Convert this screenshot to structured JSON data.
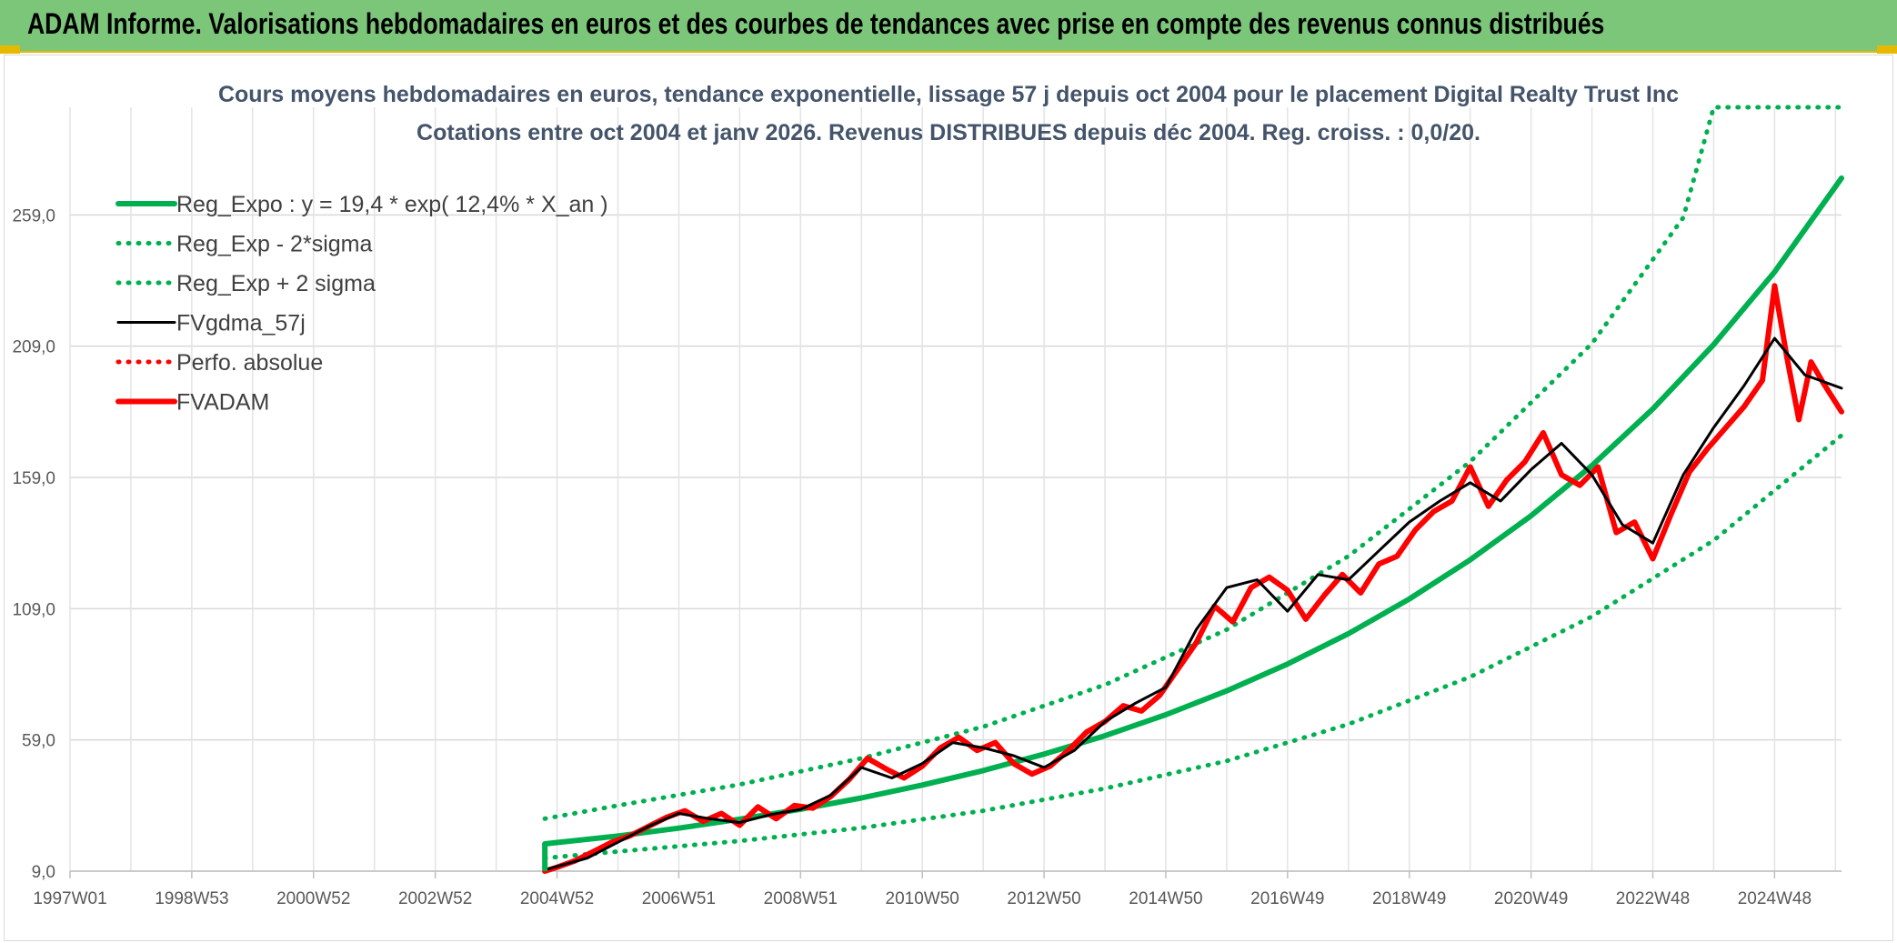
{
  "header": {
    "title": "ADAM Informe. Valorisations hebdomadaires en euros et des courbes de tendances avec prise en compte des revenus connus distribués"
  },
  "colors": {
    "header_bg": "#7cc67a",
    "accent": "#e6b800",
    "trend_green": "#00b050",
    "price_red": "#ff0000",
    "smooth_black": "#000000"
  },
  "chart_data": {
    "type": "line",
    "title": "Cours moyens hebdomadaires en euros, tendance exponentielle, lissage 57 j depuis oct 2004 pour le placement Digital Realty Trust Inc",
    "subtitle": "Cotations entre oct 2004 et janv 2026. Revenus DISTRIBUES depuis déc 2004. Reg. croiss. : 0,0/20.",
    "xlabel": "",
    "ylabel": "",
    "x_tick_labels": [
      "1997W01",
      "1998W53",
      "2000W52",
      "2002W52",
      "2004W52",
      "2006W51",
      "2008W51",
      "2010W50",
      "2012W50",
      "2014W50",
      "2016W49",
      "2018W49",
      "2020W49",
      "2022W48",
      "2024W48"
    ],
    "x_tick_years": [
      1997.0,
      1999.0,
      2001.0,
      2003.0,
      2005.0,
      2007.0,
      2009.0,
      2011.0,
      2013.0,
      2015.0,
      2017.0,
      2019.0,
      2021.0,
      2023.0,
      2025.0
    ],
    "x_range": [
      1997.0,
      2026.1
    ],
    "y_tick_labels": [
      "9,0",
      "59,0",
      "109,0",
      "159,0",
      "209,0",
      "259,0"
    ],
    "y_ticks": [
      9,
      59,
      109,
      159,
      209,
      259
    ],
    "ylim": [
      9,
      300
    ],
    "grid": true,
    "legend_position": "top-left",
    "series": [
      {
        "name": "Reg_Expo : y = 19,4 * exp( 12,4% *  X_an )",
        "style": "solid-thick",
        "color": "#00b050",
        "x": [
          2004.8,
          2005.0,
          2006,
          2007,
          2008,
          2009,
          2010,
          2011,
          2012,
          2013,
          2014,
          2015,
          2016,
          2017,
          2018,
          2019,
          2020,
          2021,
          2022,
          2023,
          2024,
          2025,
          2026.1
        ],
        "y": [
          19.4,
          19.9,
          22.4,
          25.4,
          28.8,
          32.6,
          36.9,
          41.8,
          47.3,
          53.6,
          60.6,
          68.6,
          77.7,
          87.9,
          99.5,
          112.7,
          127.6,
          144.4,
          163.5,
          185.1,
          209.6,
          237.3,
          273.0
        ]
      },
      {
        "name": "Reg_Exp - 2*sigma",
        "style": "dotted",
        "color": "#00b050",
        "x": [
          2004.8,
          2006,
          2008,
          2010,
          2012,
          2014,
          2016,
          2018,
          2020,
          2022,
          2024,
          2026.1
        ],
        "y": [
          14.0,
          16.5,
          20.5,
          25.5,
          32.0,
          40.5,
          51.0,
          65.0,
          83.0,
          106.0,
          135.0,
          175.0
        ]
      },
      {
        "name": "Reg_Exp + 2 sigma",
        "style": "dotted",
        "color": "#00b050",
        "x": [
          2004.8,
          2006,
          2008,
          2010,
          2012,
          2014,
          2016,
          2018,
          2020,
          2022,
          2023.5,
          2024,
          2026.1
        ],
        "y": [
          29.0,
          34.0,
          42.0,
          52.0,
          64.0,
          80.0,
          101.0,
          129.0,
          165.0,
          210.0,
          258.0,
          300.0,
          300.0
        ]
      },
      {
        "name": "FVgdma_57j",
        "style": "solid-thin",
        "color": "#000000",
        "x": [
          2004.8,
          2005.5,
          2006,
          2006.5,
          2007,
          2007.5,
          2008,
          2008.5,
          2009,
          2009.5,
          2010,
          2010.5,
          2011,
          2011.5,
          2012,
          2012.5,
          2013,
          2013.5,
          2014,
          2014.5,
          2015,
          2015.5,
          2016,
          2016.5,
          2017,
          2017.5,
          2018,
          2018.5,
          2019,
          2019.5,
          2020,
          2020.5,
          2021,
          2021.5,
          2022,
          2022.5,
          2023,
          2023.5,
          2024,
          2024.5,
          2025,
          2025.5,
          2026.1
        ],
        "y": [
          9.5,
          14.0,
          20.0,
          26.0,
          31.0,
          29.0,
          27.5,
          30.5,
          32.5,
          38.0,
          48.5,
          44.5,
          50.0,
          58.0,
          56.0,
          53.0,
          48.5,
          55.0,
          66.0,
          73.0,
          79.0,
          101.0,
          117.0,
          120.0,
          108.0,
          122.0,
          120.0,
          131.0,
          142.0,
          150.0,
          157.0,
          150.0,
          162.0,
          172.0,
          160.0,
          141.0,
          134.0,
          160.0,
          178.0,
          194.0,
          212.0,
          198.0,
          193.0
        ]
      },
      {
        "name": "Perfo. absolue",
        "style": "dotted",
        "color": "#ff0000",
        "x": [],
        "y": []
      },
      {
        "name": "FVADAM",
        "style": "solid-thick",
        "color": "#ff0000",
        "x": [
          2004.8,
          2005.0,
          2005.3,
          2005.6,
          2005.9,
          2006.2,
          2006.5,
          2006.8,
          2007.1,
          2007.4,
          2007.7,
          2008.0,
          2008.3,
          2008.6,
          2008.9,
          2009.2,
          2009.5,
          2009.8,
          2010.1,
          2010.4,
          2010.7,
          2011.0,
          2011.3,
          2011.6,
          2011.9,
          2012.2,
          2012.5,
          2012.8,
          2013.1,
          2013.4,
          2013.7,
          2014.0,
          2014.3,
          2014.6,
          2014.9,
          2015.2,
          2015.5,
          2015.8,
          2016.1,
          2016.4,
          2016.7,
          2017.0,
          2017.3,
          2017.6,
          2017.9,
          2018.2,
          2018.5,
          2018.8,
          2019.1,
          2019.4,
          2019.7,
          2020.0,
          2020.3,
          2020.6,
          2020.9,
          2021.2,
          2021.5,
          2021.8,
          2022.1,
          2022.4,
          2022.7,
          2023.0,
          2023.3,
          2023.6,
          2023.9,
          2024.2,
          2024.5,
          2024.8,
          2025.0,
          2025.2,
          2025.4,
          2025.6,
          2025.8,
          2026.1
        ],
        "y": [
          9.0,
          10.5,
          13.0,
          16.5,
          20.0,
          22.5,
          26.0,
          29.5,
          32.0,
          28.0,
          31.0,
          26.5,
          33.5,
          29.0,
          34.0,
          33.0,
          37.5,
          44.0,
          52.0,
          48.0,
          44.5,
          49.0,
          56.0,
          60.0,
          55.0,
          58.0,
          50.0,
          46.0,
          49.0,
          55.0,
          62.0,
          66.0,
          72.0,
          70.0,
          76.0,
          86.0,
          96.0,
          110.0,
          104.0,
          117.0,
          121.0,
          116.0,
          105.0,
          114.0,
          122.0,
          115.0,
          126.0,
          129.0,
          139.0,
          146.0,
          150.0,
          163.0,
          148.0,
          158.0,
          165.0,
          176.0,
          160.0,
          156.0,
          163.0,
          138.0,
          142.0,
          128.0,
          145.0,
          161.0,
          170.0,
          178.0,
          186.0,
          196.0,
          232.0,
          205.0,
          181.0,
          203.0,
          195.0,
          184.0
        ]
      }
    ]
  }
}
